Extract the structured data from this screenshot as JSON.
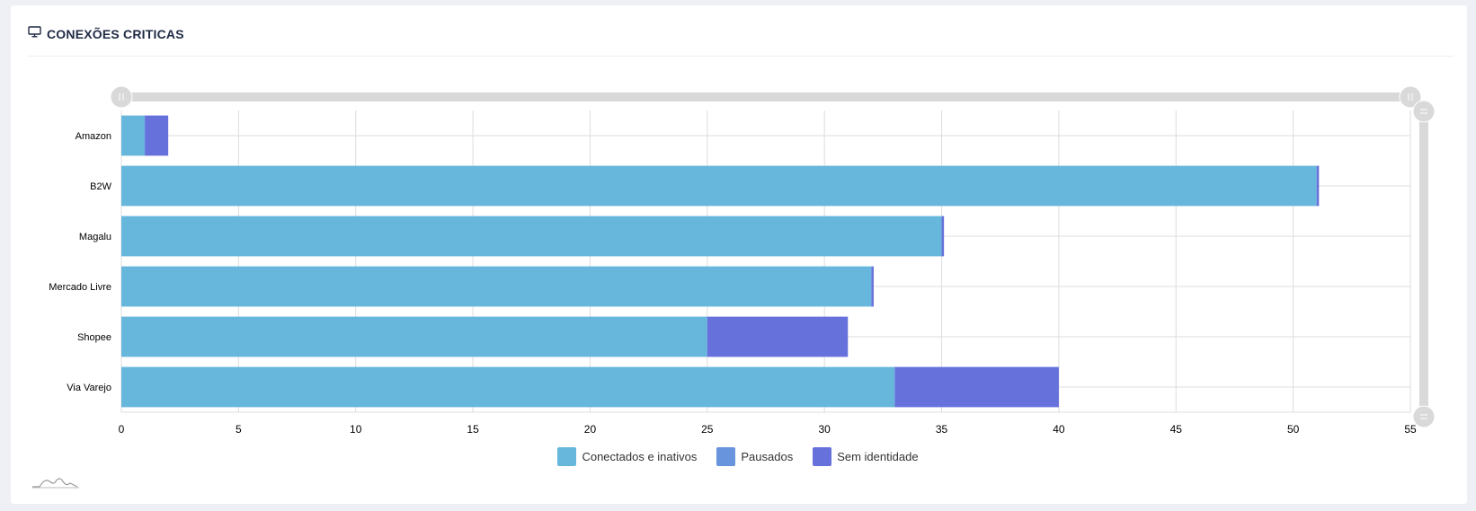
{
  "header": {
    "title": "CONEXÕES CRITICAS",
    "icon": "monitor-icon"
  },
  "colors": {
    "conectados": "#67b6dc",
    "pausados": "#6794dc",
    "sem_identidade": "#6771dc",
    "grid": "#dddddd",
    "scrollbar": "#d9d9d9"
  },
  "chart_data": {
    "type": "bar",
    "orientation": "horizontal",
    "stacked": true,
    "categories": [
      "Amazon",
      "B2W",
      "Magalu",
      "Mercado Livre",
      "Shopee",
      "Via Varejo"
    ],
    "series": [
      {
        "name": "Conectados e inativos",
        "values": [
          1,
          51,
          35,
          32,
          25,
          33
        ]
      },
      {
        "name": "Pausados",
        "values": [
          0,
          0,
          0,
          0,
          0,
          0
        ]
      },
      {
        "name": "Sem identidade",
        "values": [
          1,
          0.1,
          0.1,
          0.1,
          6,
          7
        ]
      }
    ],
    "xlim": [
      0,
      55
    ],
    "xticks": [
      0,
      5,
      10,
      15,
      20,
      25,
      30,
      35,
      40,
      45,
      50,
      55
    ],
    "grid": true,
    "legend_position": "bottom"
  }
}
